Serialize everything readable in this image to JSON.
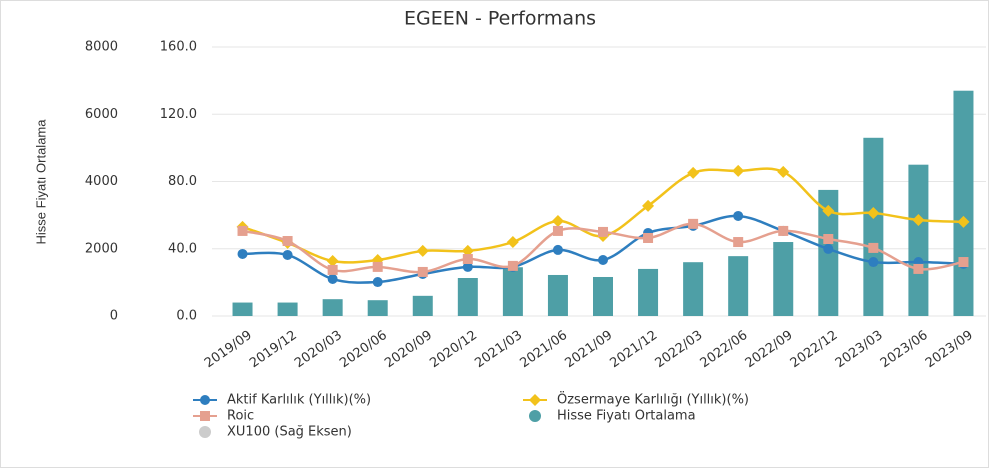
{
  "chart_data": {
    "type": "bar-line",
    "title": "EGEEN - Performans",
    "ylabel": "Hisse Fiyatı Ortalama",
    "categories": [
      "2019/09",
      "2019/12",
      "2020/03",
      "2020/06",
      "2020/09",
      "2020/12",
      "2021/03",
      "2021/06",
      "2021/09",
      "2021/12",
      "2022/03",
      "2022/06",
      "2022/09",
      "2022/12",
      "2023/03",
      "2023/06",
      "2023/09"
    ],
    "ylim": [
      0,
      8000
    ],
    "yticks": [
      0,
      2000,
      4000,
      6000,
      8000
    ],
    "y2lim": [
      0,
      160
    ],
    "y2ticks": [
      {
        "value": 0,
        "label": "0.0"
      },
      {
        "value": 40,
        "label": "40.0"
      },
      {
        "value": 80,
        "label": "80.0"
      },
      {
        "value": 120,
        "label": "120.0"
      },
      {
        "value": 160,
        "label": "160.0"
      }
    ],
    "grid": true,
    "series": [
      {
        "name": "Aktif Karlılık (Yıllık)(%)",
        "type": "line",
        "marker": "circle",
        "axis": "y2",
        "color": "#2e7ebf",
        "values": [
          36.9,
          36.3,
          22.0,
          20.2,
          25.0,
          29.2,
          29.2,
          39.3,
          33.3,
          49.4,
          53.6,
          59.5,
          50.6,
          39.9,
          32.1,
          32.1,
          31.0
        ]
      },
      {
        "name": "Özsermaye Karlılığı (Yıllık)(%)",
        "type": "line",
        "marker": "diamond",
        "axis": "y2",
        "color": "#f2c21b",
        "values": [
          53.0,
          43.5,
          32.7,
          33.3,
          38.7,
          38.7,
          44.0,
          56.5,
          47.6,
          65.5,
          85.1,
          86.3,
          85.7,
          62.5,
          61.3,
          57.1,
          56.0
        ]
      },
      {
        "name": "Roic",
        "type": "line",
        "marker": "square",
        "axis": "y2",
        "color": "#e5a08f",
        "values": [
          50.6,
          44.6,
          27.4,
          29.2,
          26.2,
          33.9,
          29.8,
          50.6,
          50.0,
          46.4,
          54.8,
          44.0,
          50.6,
          45.8,
          40.5,
          28.0,
          32.1
        ]
      },
      {
        "name": "Hisse Fiyatı Ortalama",
        "type": "bar",
        "marker": "circle",
        "color": "#4e9fa6",
        "values": [
          400,
          400,
          500,
          470,
          600,
          1130,
          1450,
          1220,
          1160,
          1400,
          1600,
          1780,
          2200,
          3750,
          5300,
          4500,
          6700
        ]
      }
    ],
    "legend_hidden": [
      {
        "name": "XU100 (Sağ Eksen)",
        "color": "#cccccc"
      }
    ]
  }
}
